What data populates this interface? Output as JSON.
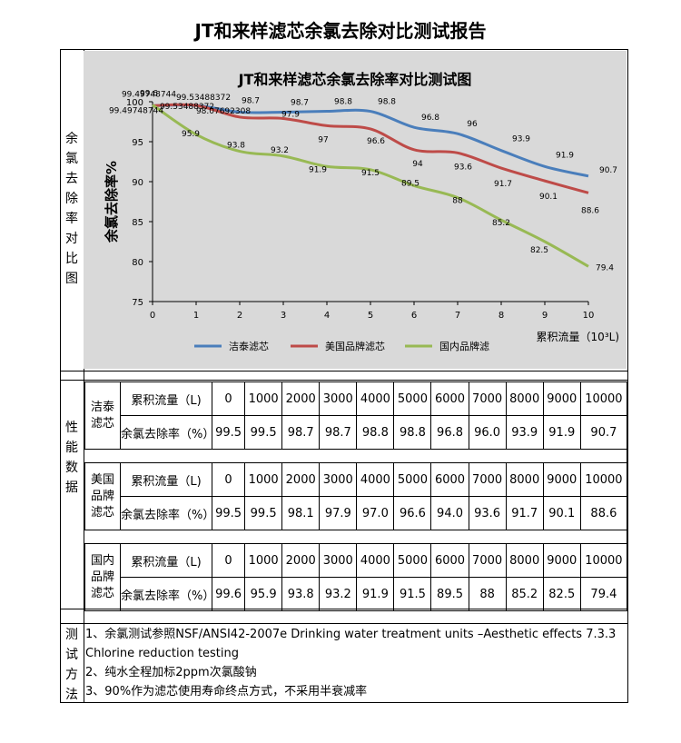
{
  "report_title": "JT和来样滤芯余氯去除对比测试报告",
  "side_labels": {
    "chart": [
      "余",
      "氯",
      "去",
      "除",
      "率",
      "对",
      "比",
      "图"
    ],
    "performance": [
      "性",
      "能",
      "数",
      "据"
    ],
    "method": [
      "测",
      "试",
      "方",
      "法"
    ]
  },
  "chart_data": {
    "type": "line",
    "title": "JT和来样滤芯余氯去除率对比测试图",
    "ylabel": "余氯去除率%",
    "xlabel": "累积流量（10³L)",
    "xlim": [
      0,
      10
    ],
    "ylim": [
      75,
      100
    ],
    "x_ticks": [
      0,
      1,
      2,
      3,
      4,
      5,
      6,
      7,
      8,
      9,
      10
    ],
    "y_ticks": [
      75,
      80,
      85,
      90,
      95,
      100
    ],
    "legend_position": "bottom",
    "x": [
      0,
      1,
      2,
      3,
      4,
      5,
      6,
      7,
      8,
      9,
      10
    ],
    "series": [
      {
        "name": "洁泰滤芯",
        "color": "#4a7ebb",
        "values": [
          99.49748744,
          99.53488372,
          98.7,
          98.7,
          98.8,
          98.8,
          96.8,
          96,
          93.9,
          91.9,
          90.7
        ],
        "labels": [
          "99.49748744",
          "99.53488372",
          "98.7",
          "98.7",
          "98.8",
          "98.8",
          "96.8",
          "96",
          "93.9",
          "91.9",
          "90.7"
        ]
      },
      {
        "name": "美国品牌滤芯",
        "color": "#be4b48",
        "values": [
          99.49748744,
          99.53488372,
          98.07692308,
          97.9,
          97,
          96.6,
          94,
          93.6,
          91.7,
          90.1,
          88.6
        ],
        "labels": [
          "99.49748744",
          "99.53488372",
          "98.07692308",
          "97.9",
          "97",
          "96.6",
          "94",
          "93.6",
          "91.7",
          "90.1",
          "88.6"
        ]
      },
      {
        "name": "国内品牌滤",
        "color": "#98b954",
        "values": [
          99.6,
          95.9,
          93.8,
          93.2,
          91.9,
          91.5,
          89.5,
          88,
          85.2,
          82.5,
          79.4
        ],
        "labels": [
          "99.6",
          "95.9",
          "93.8",
          "93.2",
          "91.9",
          "91.5",
          "89.5",
          "88",
          "85.2",
          "82.5",
          "79.4"
        ]
      }
    ]
  },
  "table": {
    "flow_label": "累积流量（L)",
    "rate_label": "余氯去除率（%）",
    "flows": [
      "0",
      "1000",
      "2000",
      "3000",
      "4000",
      "5000",
      "6000",
      "7000",
      "8000",
      "9000",
      "10000"
    ],
    "groups": [
      {
        "name": "洁泰滤芯",
        "rates": [
          "99.5",
          "99.5",
          "98.7",
          "98.7",
          "98.8",
          "98.8",
          "96.8",
          "96.0",
          "93.9",
          "91.9",
          "90.7"
        ]
      },
      {
        "name": "美国品牌滤芯",
        "rates": [
          "99.5",
          "99.5",
          "98.1",
          "97.9",
          "97.0",
          "96.6",
          "94.0",
          "93.6",
          "91.7",
          "90.1",
          "88.6"
        ]
      },
      {
        "name": "国内品牌滤芯",
        "rates": [
          "99.6",
          "95.9",
          "93.8",
          "93.2",
          "91.9",
          "91.5",
          "89.5",
          "88",
          "85.2",
          "82.5",
          "79.4"
        ]
      }
    ]
  },
  "methods": [
    "1、余氯测试参照NSF/ANSI42-2007e Drinking water treatment units –Aesthetic effects 7.3.3 Chlorine reduction testing",
    "2、纯水全程加标2ppm次氯酸钠",
    "3、90%作为滤芯使用寿命终点方式，不采用半衰减率"
  ]
}
